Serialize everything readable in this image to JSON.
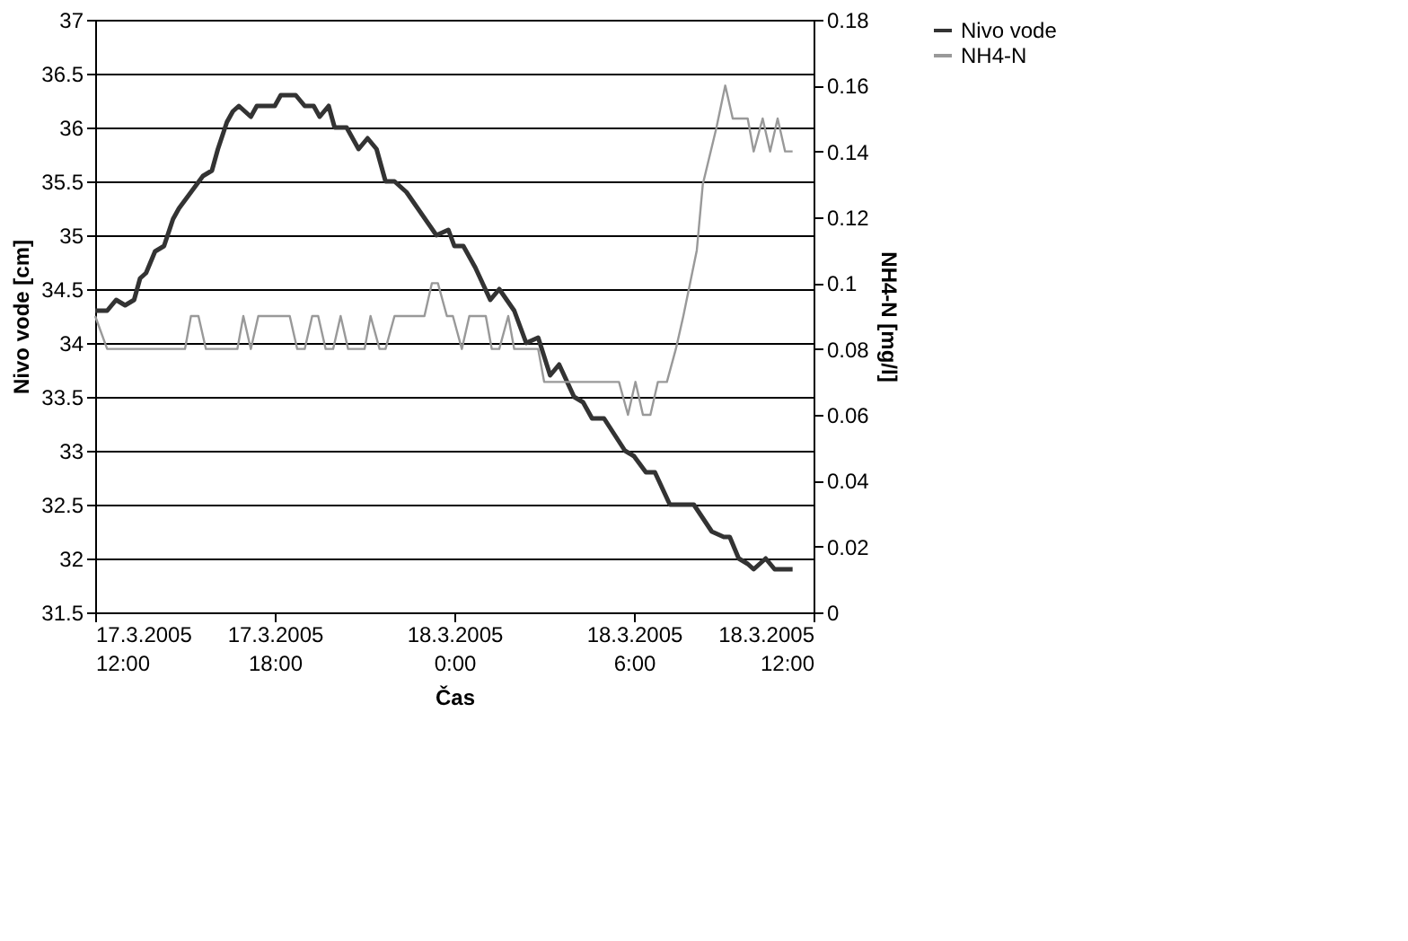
{
  "chart_data": {
    "type": "line",
    "xlabel": "Čas",
    "ylabel": "Nivo vode [cm]",
    "y2label": "NH4-N [mg/l]",
    "xlim": [
      "2005-03-17T12:00",
      "2005-03-18T12:00"
    ],
    "xticks": [
      {
        "value": "2005-03-17T12:00",
        "label": "17.3.2005\n12:00"
      },
      {
        "value": "2005-03-17T18:00",
        "label": "17.3.2005\n18:00"
      },
      {
        "value": "2005-03-18T00:00",
        "label": "18.3.2005\n0:00"
      },
      {
        "value": "2005-03-18T06:00",
        "label": "18.3.2005\n6:00"
      },
      {
        "value": "2005-03-18T12:00",
        "label": "18.3.2005\n12:00"
      }
    ],
    "ylim": [
      31.5,
      37
    ],
    "yticks": [
      31.5,
      32,
      32.5,
      33,
      33.5,
      34,
      34.5,
      35,
      35.5,
      36,
      36.5,
      37
    ],
    "y2lim": [
      0,
      0.18
    ],
    "y2ticks": [
      0,
      0.02,
      0.04,
      0.06,
      0.08,
      0.1,
      0.12,
      0.14,
      0.16,
      0.18
    ],
    "grid": "y",
    "legend": "right",
    "marker": "none",
    "line_style": "solid",
    "series": [
      {
        "name": "Nivo vode",
        "color": "#333333",
        "x": [
          "2005-03-17T12:00",
          "2005-03-17T12:24",
          "2005-03-17T12:42",
          "2005-03-17T13:00",
          "2005-03-17T13:18",
          "2005-03-17T13:30",
          "2005-03-17T13:42",
          "2005-03-17T14:00",
          "2005-03-17T14:18",
          "2005-03-17T14:36",
          "2005-03-17T14:48",
          "2005-03-17T15:12",
          "2005-03-17T15:36",
          "2005-03-17T15:54",
          "2005-03-17T16:06",
          "2005-03-17T16:24",
          "2005-03-17T16:36",
          "2005-03-17T16:48",
          "2005-03-17T17:12",
          "2005-03-17T17:24",
          "2005-03-17T18:00",
          "2005-03-17T18:12",
          "2005-03-17T18:42",
          "2005-03-17T19:00",
          "2005-03-17T19:18",
          "2005-03-17T19:30",
          "2005-03-17T19:48",
          "2005-03-17T20:00",
          "2005-03-17T20:24",
          "2005-03-17T20:48",
          "2005-03-17T21:06",
          "2005-03-17T21:24",
          "2005-03-17T21:42",
          "2005-03-17T22:00",
          "2005-03-17T22:24",
          "2005-03-17T23:24",
          "2005-03-17T23:48",
          "2005-03-18T00:00",
          "2005-03-18T00:18",
          "2005-03-18T00:42",
          "2005-03-18T01:12",
          "2005-03-18T01:30",
          "2005-03-18T02:00",
          "2005-03-18T02:24",
          "2005-03-18T02:48",
          "2005-03-18T03:12",
          "2005-03-18T03:30",
          "2005-03-18T04:00",
          "2005-03-18T04:18",
          "2005-03-18T04:36",
          "2005-03-18T05:00",
          "2005-03-18T05:42",
          "2005-03-18T06:00",
          "2005-03-18T06:24",
          "2005-03-18T06:42",
          "2005-03-18T07:12",
          "2005-03-18T08:00",
          "2005-03-18T08:36",
          "2005-03-18T09:00",
          "2005-03-18T09:12",
          "2005-03-18T09:30",
          "2005-03-18T09:48",
          "2005-03-18T10:00",
          "2005-03-18T10:24",
          "2005-03-18T10:42",
          "2005-03-18T11:18"
        ],
        "values": [
          34.3,
          34.3,
          34.4,
          34.35,
          34.4,
          34.6,
          34.65,
          34.85,
          34.9,
          35.15,
          35.25,
          35.4,
          35.55,
          35.6,
          35.8,
          36.05,
          36.15,
          36.2,
          36.1,
          36.2,
          36.2,
          36.3,
          36.3,
          36.2,
          36.2,
          36.1,
          36.2,
          36.0,
          36.0,
          35.8,
          35.9,
          35.8,
          35.5,
          35.5,
          35.4,
          35.0,
          35.05,
          34.9,
          34.9,
          34.7,
          34.4,
          34.5,
          34.3,
          34.0,
          34.05,
          33.7,
          33.8,
          33.5,
          33.45,
          33.3,
          33.3,
          33.0,
          32.95,
          32.8,
          32.8,
          32.5,
          32.5,
          32.25,
          32.2,
          32.2,
          32.0,
          31.95,
          31.9,
          32.0,
          31.9,
          31.9
        ]
      },
      {
        "name": "NH4-N",
        "color": "#999999",
        "axis": "y2",
        "x": [
          "2005-03-17T12:00",
          "2005-03-17T12:24",
          "2005-03-17T15:00",
          "2005-03-17T15:12",
          "2005-03-17T15:27",
          "2005-03-17T15:42",
          "2005-03-17T16:45",
          "2005-03-17T16:57",
          "2005-03-17T17:12",
          "2005-03-17T17:27",
          "2005-03-17T18:30",
          "2005-03-17T18:45",
          "2005-03-17T19:00",
          "2005-03-17T19:15",
          "2005-03-17T19:27",
          "2005-03-17T19:42",
          "2005-03-17T19:57",
          "2005-03-17T20:12",
          "2005-03-17T20:27",
          "2005-03-17T21:00",
          "2005-03-17T21:12",
          "2005-03-17T21:30",
          "2005-03-17T21:42",
          "2005-03-17T22:00",
          "2005-03-17T23:00",
          "2005-03-17T23:15",
          "2005-03-17T23:27",
          "2005-03-17T23:45",
          "2005-03-17T23:57",
          "2005-03-18T00:15",
          "2005-03-18T00:30",
          "2005-03-18T01:03",
          "2005-03-18T01:15",
          "2005-03-18T01:30",
          "2005-03-18T01:48",
          "2005-03-18T02:00",
          "2005-03-18T02:48",
          "2005-03-18T03:00",
          "2005-03-18T05:30",
          "2005-03-18T05:48",
          "2005-03-18T06:03",
          "2005-03-18T06:18",
          "2005-03-18T06:33",
          "2005-03-18T06:48",
          "2005-03-18T07:06",
          "2005-03-18T07:24",
          "2005-03-18T07:39",
          "2005-03-18T08:06",
          "2005-03-18T08:18",
          "2005-03-18T08:45",
          "2005-03-18T09:03",
          "2005-03-18T09:18",
          "2005-03-18T09:48",
          "2005-03-18T10:00",
          "2005-03-18T10:18",
          "2005-03-18T10:33",
          "2005-03-18T10:48",
          "2005-03-18T11:03",
          "2005-03-18T11:18"
        ],
        "values": [
          0.09,
          0.08,
          0.08,
          0.09,
          0.09,
          0.08,
          0.08,
          0.09,
          0.08,
          0.09,
          0.09,
          0.08,
          0.08,
          0.09,
          0.09,
          0.08,
          0.08,
          0.09,
          0.08,
          0.08,
          0.09,
          0.08,
          0.08,
          0.09,
          0.09,
          0.1,
          0.1,
          0.09,
          0.09,
          0.08,
          0.09,
          0.09,
          0.08,
          0.08,
          0.09,
          0.08,
          0.08,
          0.07,
          0.07,
          0.06,
          0.07,
          0.06,
          0.06,
          0.07,
          0.07,
          0.08,
          0.09,
          0.11,
          0.13,
          0.147,
          0.16,
          0.15,
          0.15,
          0.14,
          0.15,
          0.14,
          0.15,
          0.14,
          0.14
        ]
      }
    ]
  }
}
